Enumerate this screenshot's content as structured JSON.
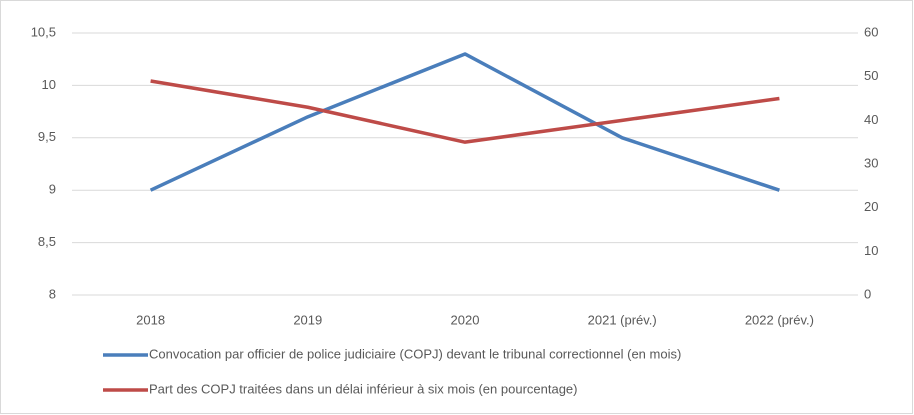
{
  "chart_data": {
    "type": "line",
    "categories": [
      "2018",
      "2019",
      "2020",
      "2021 (prév.)",
      "2022 (prév.)"
    ],
    "series": [
      {
        "name": "Convocation par officier de police judiciaire (COPJ) devant le tribunal correctionnel (en mois)",
        "color": "#4a7ebb",
        "values": [
          9,
          9.7,
          10.3,
          9.5,
          9.0
        ]
      },
      {
        "name": "Part des COPJ traitées dans un délai inférieur à six mois (en pourcentage)",
        "color": "#be4b48",
        "axis": "y2",
        "values": [
          49,
          43,
          35,
          40,
          45
        ]
      }
    ],
    "ylim": [
      8,
      10.5
    ],
    "yticks": [
      8,
      {
        "value": 8.5,
        "label": "8,5"
      },
      9,
      {
        "value": 9.5,
        "label": "9,5"
      },
      10,
      {
        "value": 10.5,
        "label": "10,5"
      }
    ],
    "y2lim": [
      0,
      60
    ],
    "y2ticks": [
      0,
      10,
      20,
      30,
      40,
      50,
      60
    ],
    "grid": true,
    "legend": "bottom"
  }
}
